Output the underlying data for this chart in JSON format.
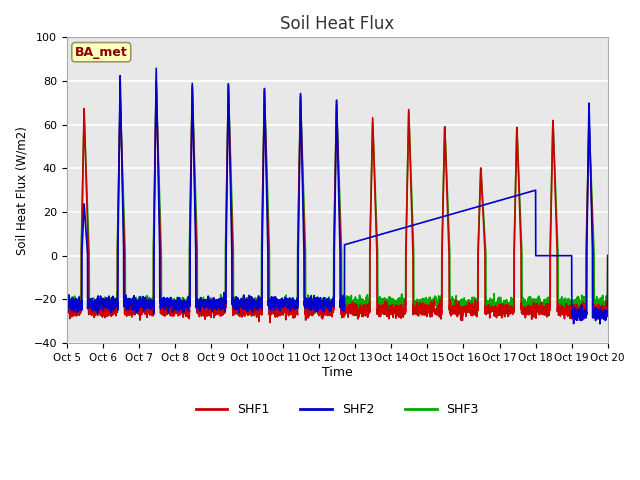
{
  "title": "Soil Heat Flux",
  "xlabel": "Time",
  "ylabel": "Soil Heat Flux (W/m2)",
  "ylim": [
    -40,
    100
  ],
  "xlim": [
    0,
    15
  ],
  "fig_bg_color": "#ffffff",
  "plot_bg_color": "#e8e8e8",
  "grid_color": "#ffffff",
  "annotation_text": "BA_met",
  "annotation_color": "#8b0000",
  "annotation_bg": "#ffffc0",
  "annotation_edge": "#999966",
  "xtick_labels": [
    "Oct 5",
    "Oct 6",
    "Oct 7",
    "Oct 8",
    "Oct 9",
    "Oct 10",
    "Oct 11",
    "Oct 12",
    "Oct 13",
    "Oct 14",
    "Oct 15",
    "Oct 16",
    "Oct 17",
    "Oct 18",
    "Oct 19",
    "Oct 20"
  ],
  "legend_labels": [
    "SHF1",
    "SHF2",
    "SHF3"
  ],
  "shf1_color": "#cc0000",
  "shf2_color": "#0000cc",
  "shf3_color": "#00aa00",
  "line_lw": 1.2
}
